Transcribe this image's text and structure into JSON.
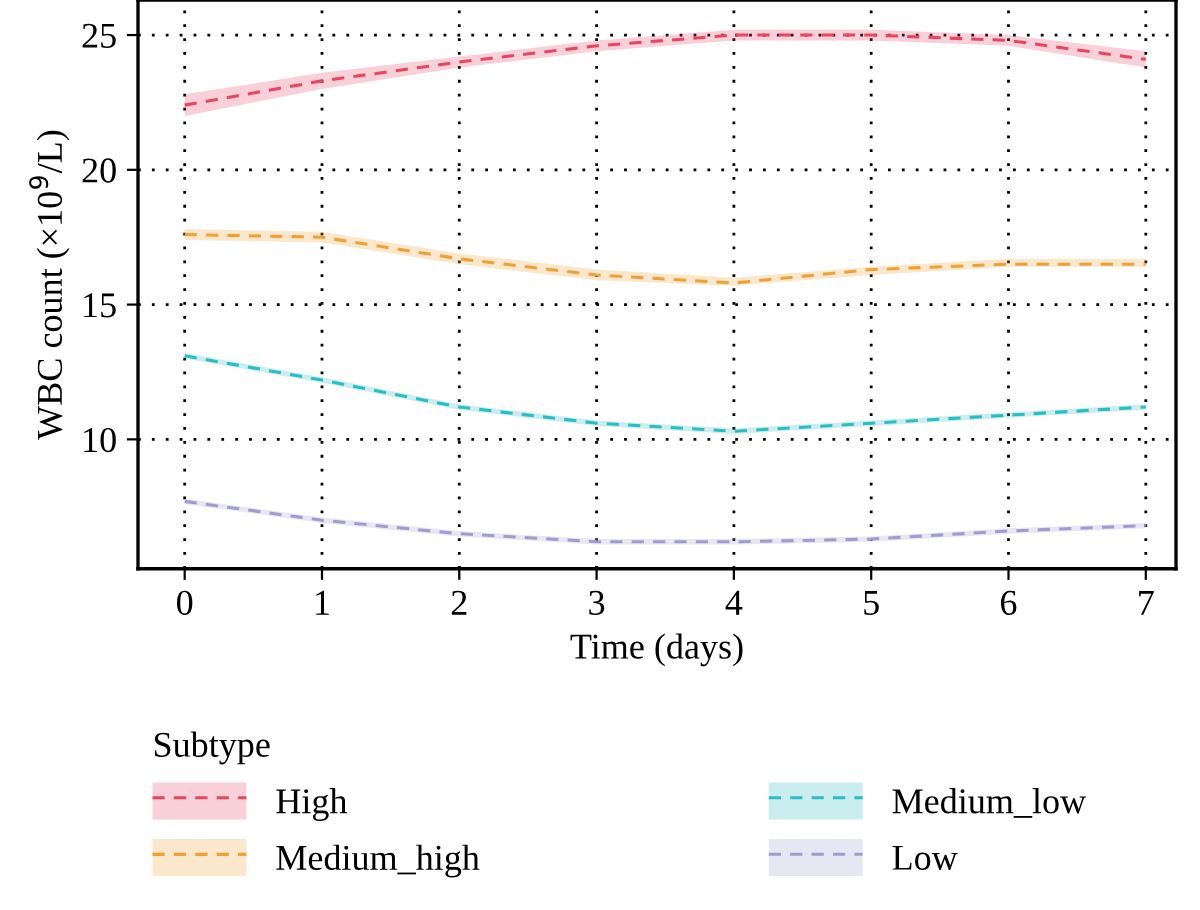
{
  "chart_data": {
    "type": "line",
    "xlabel": "Time (days)",
    "ylabel": "WBC count (×10$^{9}$/L)",
    "legend_title": "Subtype",
    "x": [
      0,
      1,
      2,
      3,
      4,
      5,
      6,
      7
    ],
    "series": [
      {
        "name": "High",
        "color": "#e8455f",
        "values": [
          22.4,
          23.3,
          24.0,
          24.6,
          25.0,
          25.0,
          24.8,
          24.1
        ],
        "lower": [
          22.0,
          23.0,
          23.8,
          24.4,
          24.8,
          24.8,
          24.6,
          23.8
        ],
        "upper": [
          22.8,
          23.6,
          24.2,
          24.8,
          25.2,
          25.2,
          25.0,
          24.4
        ]
      },
      {
        "name": "Medium_high",
        "color": "#f0a135",
        "values": [
          17.6,
          17.5,
          16.7,
          16.1,
          15.8,
          16.3,
          16.5,
          16.5
        ],
        "lower": [
          17.4,
          17.3,
          16.5,
          15.9,
          15.7,
          16.1,
          16.4,
          16.4
        ],
        "upper": [
          17.8,
          17.7,
          16.9,
          16.3,
          16.0,
          16.4,
          16.7,
          16.7
        ]
      },
      {
        "name": "Medium_low",
        "color": "#2bbcc4",
        "values": [
          13.1,
          12.2,
          11.2,
          10.6,
          10.3,
          10.6,
          10.9,
          11.2
        ],
        "lower": [
          13.0,
          12.1,
          11.1,
          10.5,
          10.2,
          10.5,
          10.8,
          11.1
        ],
        "upper": [
          13.2,
          12.3,
          11.3,
          10.7,
          10.4,
          10.7,
          11.0,
          11.3
        ]
      },
      {
        "name": "Low",
        "color": "#a09ccf",
        "values": [
          7.7,
          7.0,
          6.5,
          6.2,
          6.2,
          6.3,
          6.6,
          6.8
        ],
        "lower": [
          7.6,
          6.9,
          6.4,
          6.1,
          6.1,
          6.2,
          6.5,
          6.7
        ],
        "upper": [
          7.8,
          7.1,
          6.6,
          6.3,
          6.3,
          6.4,
          6.7,
          6.9
        ]
      }
    ],
    "xlim": [
      -0.34,
      7.22
    ],
    "ylim": [
      5.2,
      26.3
    ],
    "xticks": [
      0,
      1,
      2,
      3,
      4,
      5,
      6,
      7
    ],
    "yticks": [
      10,
      15,
      20,
      25
    ],
    "grid": true,
    "legend": "bottom",
    "line_style": "dashed",
    "marker": "none"
  }
}
